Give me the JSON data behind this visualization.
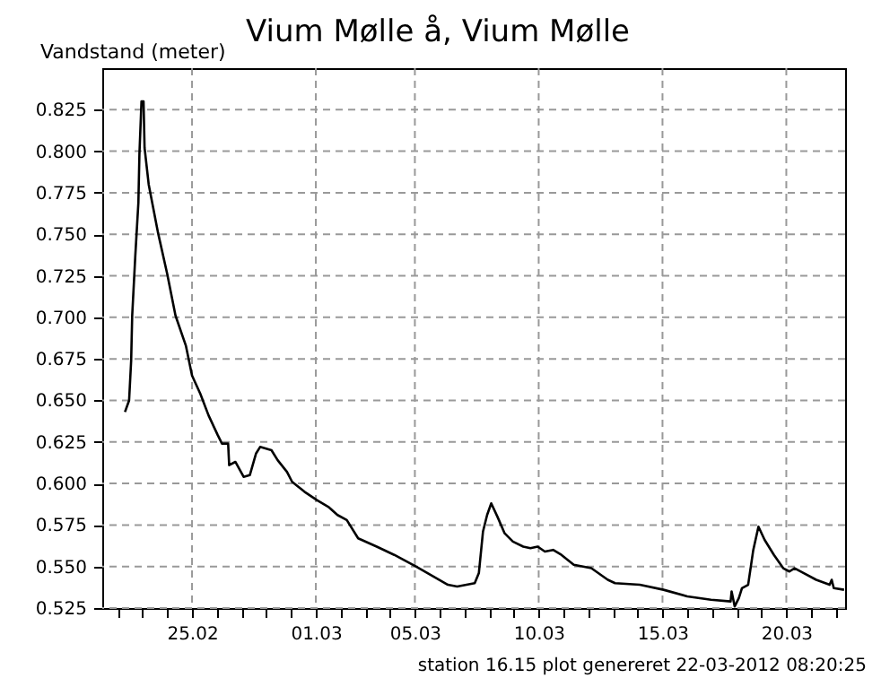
{
  "chart_data": {
    "type": "line",
    "title": "Vium Mølle å, Vium Mølle",
    "ylabel": "Vandstand (meter)",
    "annotations": [
      "station 16.15 plot genereret 22-03-2012 08:20:25"
    ],
    "x": [
      "2012-02-22T07:00",
      "2012-02-22T11:00",
      "2012-02-22T13:00",
      "2012-02-22T14:00",
      "2012-02-22T17:00",
      "2012-02-22T20:00",
      "2012-02-22T21:00",
      "2012-02-22T23:00",
      "2012-02-23T01:00",
      "2012-02-23T02:00",
      "2012-02-23T06:00",
      "2012-02-23T15:00",
      "2012-02-24T00:00",
      "2012-02-24T08:00",
      "2012-02-24T18:00",
      "2012-02-25T00:00",
      "2012-02-25T08:00",
      "2012-02-25T16:00",
      "2012-02-26T01:00",
      "2012-02-26T05:00",
      "2012-02-26T11:00",
      "2012-02-26T12:00",
      "2012-02-26T18:00",
      "2012-02-27T02:00",
      "2012-02-27T08:00",
      "2012-02-27T14:00",
      "2012-02-27T18:00",
      "2012-02-28T05:00",
      "2012-02-28T11:00",
      "2012-02-28T20:00",
      "2012-02-29T01:00",
      "2012-02-29T13:00",
      "2012-03-01T01:00",
      "2012-03-01T12:00",
      "2012-03-01T21:00",
      "2012-03-02T06:00",
      "2012-03-02T17:00",
      "2012-03-03T11:00",
      "2012-03-04T04:00",
      "2012-03-05T01:00",
      "2012-03-05T15:00",
      "2012-03-06T08:00",
      "2012-03-06T17:00",
      "2012-03-07T10:00",
      "2012-03-07T14:00",
      "2012-03-07T18:00",
      "2012-03-07T22:00",
      "2012-03-08T02:00",
      "2012-03-08T08:00",
      "2012-03-08T15:00",
      "2012-03-08T23:00",
      "2012-03-09T09:00",
      "2012-03-09T16:00",
      "2012-03-09T23:00",
      "2012-03-10T06:00",
      "2012-03-10T14:00",
      "2012-03-10T22:00",
      "2012-03-11T10:00",
      "2012-03-12T03:00",
      "2012-03-12T19:00",
      "2012-03-13T02:00",
      "2012-03-14T02:00",
      "2012-03-15T01:00",
      "2012-03-16T00:00",
      "2012-03-16T23:00",
      "2012-03-17T18:00",
      "2012-03-17T19:00",
      "2012-03-17T22:00",
      "2012-03-18T02:00",
      "2012-03-18T05:00",
      "2012-03-18T11:00",
      "2012-03-18T16:00",
      "2012-03-18T21:00",
      "2012-03-19T03:00",
      "2012-03-19T12:00",
      "2012-03-19T21:00",
      "2012-03-20T03:00",
      "2012-03-20T08:00",
      "2012-03-20T17:00",
      "2012-03-21T05:00",
      "2012-03-21T18:00",
      "2012-03-21T20:00",
      "2012-03-21T22:00",
      "2012-03-22T08:00"
    ],
    "series": [
      {
        "color": "#000000",
        "values": [
          0.643,
          0.65,
          0.674,
          0.701,
          0.737,
          0.769,
          0.798,
          0.83,
          0.83,
          0.802,
          0.78,
          0.751,
          0.726,
          0.701,
          0.683,
          0.665,
          0.654,
          0.641,
          0.629,
          0.624,
          0.624,
          0.611,
          0.613,
          0.604,
          0.605,
          0.618,
          0.622,
          0.62,
          0.614,
          0.607,
          0.601,
          0.595,
          0.59,
          0.586,
          0.581,
          0.578,
          0.567,
          0.562,
          0.557,
          0.55,
          0.545,
          0.539,
          0.538,
          0.54,
          0.546,
          0.571,
          0.581,
          0.588,
          0.58,
          0.57,
          0.565,
          0.562,
          0.561,
          0.562,
          0.559,
          0.56,
          0.557,
          0.551,
          0.549,
          0.542,
          0.54,
          0.539,
          0.536,
          0.532,
          0.53,
          0.529,
          0.535,
          0.526,
          0.531,
          0.537,
          0.539,
          0.56,
          0.574,
          0.566,
          0.557,
          0.549,
          0.547,
          0.549,
          0.546,
          0.542,
          0.539,
          0.542,
          0.537,
          0.536
        ]
      }
    ],
    "xlim": [
      "2012-02-21T09:00",
      "2012-03-22T09:00"
    ],
    "xticks": [
      {
        "value": "2012-02-22",
        "label": null
      },
      {
        "value": "2012-02-23",
        "label": null
      },
      {
        "value": "2012-02-24",
        "label": null
      },
      {
        "value": "2012-02-25",
        "label": "25.02"
      },
      {
        "value": "2012-02-26",
        "label": null
      },
      {
        "value": "2012-02-27",
        "label": null
      },
      {
        "value": "2012-02-28",
        "label": null
      },
      {
        "value": "2012-02-29",
        "label": null
      },
      {
        "value": "2012-03-01",
        "label": "01.03"
      },
      {
        "value": "2012-03-02",
        "label": null
      },
      {
        "value": "2012-03-03",
        "label": null
      },
      {
        "value": "2012-03-04",
        "label": null
      },
      {
        "value": "2012-03-05",
        "label": "05.03"
      },
      {
        "value": "2012-03-06",
        "label": null
      },
      {
        "value": "2012-03-07",
        "label": null
      },
      {
        "value": "2012-03-08",
        "label": null
      },
      {
        "value": "2012-03-09",
        "label": null
      },
      {
        "value": "2012-03-10",
        "label": "10.03"
      },
      {
        "value": "2012-03-11",
        "label": null
      },
      {
        "value": "2012-03-12",
        "label": null
      },
      {
        "value": "2012-03-13",
        "label": null
      },
      {
        "value": "2012-03-14",
        "label": null
      },
      {
        "value": "2012-03-15",
        "label": "15.03"
      },
      {
        "value": "2012-03-16",
        "label": null
      },
      {
        "value": "2012-03-17",
        "label": null
      },
      {
        "value": "2012-03-18",
        "label": null
      },
      {
        "value": "2012-03-19",
        "label": null
      },
      {
        "value": "2012-03-20",
        "label": "20.03"
      },
      {
        "value": "2012-03-21",
        "label": null
      },
      {
        "value": "2012-03-22",
        "label": null
      }
    ],
    "ylim": [
      0.525,
      0.85
    ],
    "yticks": [
      0.525,
      {
        "value": 0.55,
        "label": "0.550"
      },
      0.575,
      {
        "value": 0.6,
        "label": "0.600"
      },
      0.625,
      {
        "value": 0.65,
        "label": "0.650"
      },
      0.675,
      {
        "value": 0.7,
        "label": "0.700"
      },
      0.725,
      {
        "value": 0.75,
        "label": "0.750"
      },
      0.775,
      {
        "value": 0.8,
        "label": "0.800"
      },
      0.825
    ],
    "grid": true,
    "legend": false,
    "marker": "none",
    "line_style": "solid"
  }
}
